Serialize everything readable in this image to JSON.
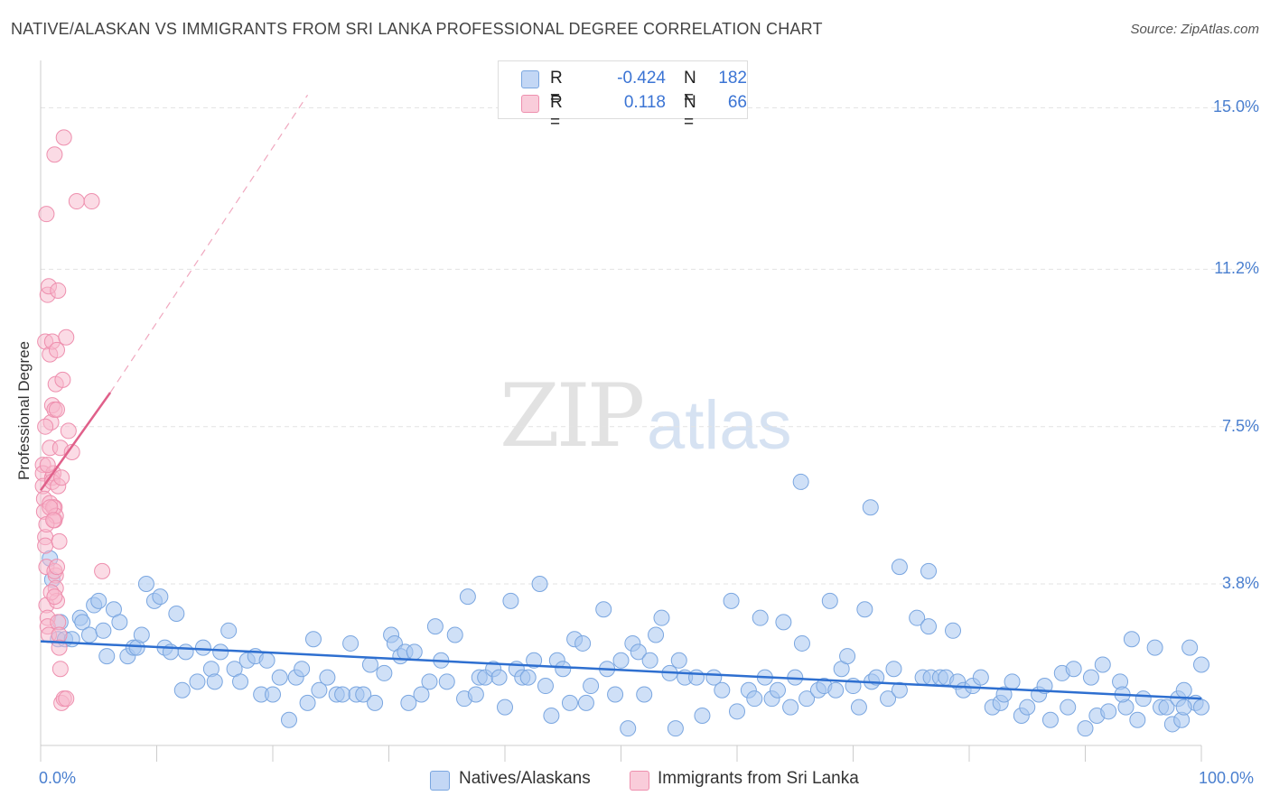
{
  "title": "NATIVE/ALASKAN VS IMMIGRANTS FROM SRI LANKA PROFESSIONAL DEGREE CORRELATION CHART",
  "source": "Source: ZipAtlas.com",
  "watermark": {
    "zip": "ZIP",
    "atlas": "atlas"
  },
  "legend": {
    "r_label": "R =",
    "n_label": "N =",
    "series1": {
      "r": "-0.424",
      "n": "182"
    },
    "series2": {
      "r": "0.118",
      "n": "66"
    }
  },
  "colors": {
    "blue_fill": "#a8c6f0",
    "blue_stroke": "#7aa6e0",
    "blue_line": "#2e6fd0",
    "pink_fill": "#f7b8cc",
    "pink_stroke": "#ee8fae",
    "pink_line": "#e0608a",
    "tick_text": "#4a7fcf"
  },
  "chart_data": {
    "type": "scatter",
    "title": "NATIVE/ALASKAN VS IMMIGRANTS FROM SRI LANKA PROFESSIONAL DEGREE CORRELATION CHART",
    "xlabel": "",
    "ylabel": "Professional Degree",
    "xlim": [
      0,
      100
    ],
    "ylim": [
      0,
      15.9
    ],
    "x_tick_labels": [
      "0.0%",
      "100.0%"
    ],
    "y_ticks": [
      {
        "value": 3.8,
        "label": "3.8%"
      },
      {
        "value": 7.5,
        "label": "7.5%"
      },
      {
        "value": 11.2,
        "label": "11.2%"
      },
      {
        "value": 15.0,
        "label": "15.0%"
      }
    ],
    "series": [
      {
        "name": "Natives/Alaskans",
        "R": -0.424,
        "N": 182,
        "trend": {
          "x": [
            0,
            100
          ],
          "y": [
            2.45,
            1.1
          ]
        },
        "points": [
          [
            0.8,
            4.4
          ],
          [
            1.0,
            3.9
          ],
          [
            1.5,
            2.5
          ],
          [
            1.7,
            2.9
          ],
          [
            2.1,
            2.5
          ],
          [
            2.7,
            2.5
          ],
          [
            3.4,
            3.0
          ],
          [
            3.6,
            2.9
          ],
          [
            4.2,
            2.6
          ],
          [
            4.6,
            3.3
          ],
          [
            5.0,
            3.4
          ],
          [
            5.4,
            2.7
          ],
          [
            5.7,
            2.1
          ],
          [
            6.3,
            3.2
          ],
          [
            6.8,
            2.9
          ],
          [
            7.5,
            2.1
          ],
          [
            8.0,
            2.3
          ],
          [
            8.3,
            2.3
          ],
          [
            8.7,
            2.6
          ],
          [
            9.1,
            3.8
          ],
          [
            9.8,
            3.4
          ],
          [
            10.3,
            3.5
          ],
          [
            10.7,
            2.3
          ],
          [
            11.2,
            2.2
          ],
          [
            11.7,
            3.1
          ],
          [
            12.2,
            1.3
          ],
          [
            12.5,
            2.2
          ],
          [
            13.5,
            1.5
          ],
          [
            14.0,
            2.3
          ],
          [
            14.7,
            1.8
          ],
          [
            15.0,
            1.5
          ],
          [
            15.5,
            2.2
          ],
          [
            16.2,
            2.7
          ],
          [
            16.7,
            1.8
          ],
          [
            17.2,
            1.5
          ],
          [
            17.8,
            2.0
          ],
          [
            18.5,
            2.1
          ],
          [
            19.0,
            1.2
          ],
          [
            19.5,
            2.0
          ],
          [
            20.0,
            1.2
          ],
          [
            20.6,
            1.6
          ],
          [
            21.4,
            0.6
          ],
          [
            22.0,
            1.6
          ],
          [
            22.5,
            1.8
          ],
          [
            23.0,
            1.0
          ],
          [
            23.5,
            2.5
          ],
          [
            24.0,
            1.3
          ],
          [
            24.7,
            1.6
          ],
          [
            25.5,
            1.2
          ],
          [
            26.0,
            1.2
          ],
          [
            26.7,
            2.4
          ],
          [
            27.2,
            1.2
          ],
          [
            27.8,
            1.2
          ],
          [
            28.4,
            1.9
          ],
          [
            28.8,
            1.0
          ],
          [
            29.6,
            1.7
          ],
          [
            30.2,
            2.6
          ],
          [
            30.5,
            2.4
          ],
          [
            31.0,
            2.1
          ],
          [
            31.4,
            2.2
          ],
          [
            31.7,
            1.0
          ],
          [
            32.2,
            2.2
          ],
          [
            32.8,
            1.2
          ],
          [
            33.5,
            1.5
          ],
          [
            34.0,
            2.8
          ],
          [
            34.5,
            2.0
          ],
          [
            35.0,
            1.5
          ],
          [
            35.7,
            2.6
          ],
          [
            36.5,
            1.1
          ],
          [
            36.8,
            3.5
          ],
          [
            37.5,
            1.2
          ],
          [
            37.8,
            1.6
          ],
          [
            38.3,
            1.6
          ],
          [
            39.0,
            1.8
          ],
          [
            39.5,
            1.6
          ],
          [
            40.0,
            0.9
          ],
          [
            40.5,
            3.4
          ],
          [
            41.0,
            1.8
          ],
          [
            41.5,
            1.6
          ],
          [
            42.0,
            1.6
          ],
          [
            42.5,
            2.0
          ],
          [
            43.0,
            3.8
          ],
          [
            43.5,
            1.4
          ],
          [
            44.0,
            0.7
          ],
          [
            44.5,
            2.0
          ],
          [
            45.0,
            1.8
          ],
          [
            45.6,
            1.0
          ],
          [
            46.0,
            2.5
          ],
          [
            46.7,
            2.4
          ],
          [
            47.0,
            1.0
          ],
          [
            47.4,
            1.4
          ],
          [
            48.5,
            3.2
          ],
          [
            48.8,
            1.8
          ],
          [
            49.5,
            1.2
          ],
          [
            50.0,
            2.0
          ],
          [
            50.6,
            0.4
          ],
          [
            51.0,
            2.4
          ],
          [
            51.5,
            2.2
          ],
          [
            52.0,
            1.2
          ],
          [
            52.5,
            2.0
          ],
          [
            53.0,
            2.6
          ],
          [
            53.5,
            3.0
          ],
          [
            54.2,
            1.7
          ],
          [
            54.7,
            0.4
          ],
          [
            55.0,
            2.0
          ],
          [
            55.5,
            1.6
          ],
          [
            56.5,
            1.6
          ],
          [
            57.0,
            0.7
          ],
          [
            58.0,
            1.6
          ],
          [
            58.7,
            1.3
          ],
          [
            59.5,
            3.4
          ],
          [
            60.0,
            0.8
          ],
          [
            61.0,
            1.3
          ],
          [
            61.5,
            1.1
          ],
          [
            62.0,
            3.0
          ],
          [
            62.4,
            1.6
          ],
          [
            63.0,
            1.1
          ],
          [
            63.5,
            1.3
          ],
          [
            64.0,
            2.9
          ],
          [
            64.6,
            0.9
          ],
          [
            65.0,
            1.6
          ],
          [
            65.6,
            2.4
          ],
          [
            66.0,
            1.1
          ],
          [
            67.0,
            1.3
          ],
          [
            67.5,
            1.4
          ],
          [
            68.0,
            3.4
          ],
          [
            68.5,
            1.3
          ],
          [
            69.0,
            1.8
          ],
          [
            69.5,
            2.1
          ],
          [
            70.0,
            1.4
          ],
          [
            70.5,
            0.9
          ],
          [
            71.0,
            3.2
          ],
          [
            71.6,
            1.5
          ],
          [
            72.0,
            1.6
          ],
          [
            73.0,
            1.1
          ],
          [
            73.5,
            1.8
          ],
          [
            74.0,
            1.3
          ],
          [
            75.5,
            3.0
          ],
          [
            76.0,
            1.6
          ],
          [
            76.5,
            2.8
          ],
          [
            76.7,
            1.6
          ],
          [
            77.5,
            1.6
          ],
          [
            78.0,
            1.6
          ],
          [
            78.6,
            2.7
          ],
          [
            79.0,
            1.5
          ],
          [
            79.5,
            1.3
          ],
          [
            80.3,
            1.4
          ],
          [
            81.0,
            1.6
          ],
          [
            82.0,
            0.9
          ],
          [
            82.7,
            1.0
          ],
          [
            83.0,
            1.2
          ],
          [
            83.7,
            1.5
          ],
          [
            84.5,
            0.7
          ],
          [
            85.0,
            0.9
          ],
          [
            86.0,
            1.2
          ],
          [
            86.5,
            1.4
          ],
          [
            87.0,
            0.6
          ],
          [
            88.0,
            1.7
          ],
          [
            88.5,
            0.9
          ],
          [
            89.0,
            1.8
          ],
          [
            90.0,
            0.4
          ],
          [
            90.5,
            1.6
          ],
          [
            91.0,
            0.7
          ],
          [
            91.5,
            1.9
          ],
          [
            92.0,
            0.8
          ],
          [
            93.0,
            1.5
          ],
          [
            93.5,
            0.9
          ],
          [
            94.0,
            2.5
          ],
          [
            94.5,
            0.6
          ],
          [
            95.0,
            1.1
          ],
          [
            96.0,
            2.3
          ],
          [
            96.5,
            0.9
          ],
          [
            97.0,
            0.9
          ],
          [
            97.5,
            0.5
          ],
          [
            98.0,
            1.1
          ],
          [
            98.5,
            1.3
          ],
          [
            99.0,
            2.3
          ],
          [
            99.5,
            1.0
          ],
          [
            100.0,
            0.9
          ],
          [
            65.5,
            6.2
          ],
          [
            71.5,
            5.6
          ],
          [
            74.0,
            4.2
          ],
          [
            76.5,
            4.1
          ],
          [
            100.0,
            1.9
          ],
          [
            93.2,
            1.2
          ],
          [
            98.3,
            0.6
          ],
          [
            98.5,
            0.9
          ]
        ]
      },
      {
        "name": "Immigrants from Sri Lanka",
        "R": 0.118,
        "N": 66,
        "trend": {
          "x": [
            0.0,
            6.0
          ],
          "y": [
            6.0,
            8.3
          ]
        },
        "trend_extended": {
          "x": [
            6.0,
            23.0
          ],
          "y": [
            8.3,
            15.3
          ]
        },
        "points": [
          [
            0.2,
            6.6
          ],
          [
            0.2,
            6.4
          ],
          [
            0.2,
            6.1
          ],
          [
            0.3,
            5.8
          ],
          [
            0.3,
            5.5
          ],
          [
            0.4,
            4.9
          ],
          [
            0.4,
            4.7
          ],
          [
            0.5,
            4.2
          ],
          [
            0.5,
            3.3
          ],
          [
            0.6,
            3.0
          ],
          [
            0.6,
            2.8
          ],
          [
            0.7,
            2.6
          ],
          [
            0.8,
            7.0
          ],
          [
            0.9,
            7.6
          ],
          [
            1.0,
            8.0
          ],
          [
            1.0,
            6.3
          ],
          [
            1.1,
            6.4
          ],
          [
            1.2,
            5.6
          ],
          [
            1.2,
            5.3
          ],
          [
            1.3,
            4.0
          ],
          [
            1.3,
            3.7
          ],
          [
            1.4,
            3.4
          ],
          [
            1.5,
            2.9
          ],
          [
            1.6,
            2.6
          ],
          [
            1.6,
            2.3
          ],
          [
            1.7,
            1.8
          ],
          [
            1.8,
            1.0
          ],
          [
            2.0,
            1.1
          ],
          [
            2.2,
            1.1
          ],
          [
            0.5,
            12.5
          ],
          [
            1.2,
            13.9
          ],
          [
            2.0,
            14.3
          ],
          [
            3.1,
            12.8
          ],
          [
            4.4,
            12.8
          ],
          [
            0.6,
            10.6
          ],
          [
            0.7,
            10.8
          ],
          [
            1.5,
            10.7
          ],
          [
            0.4,
            9.5
          ],
          [
            0.8,
            9.2
          ],
          [
            1.0,
            9.5
          ],
          [
            1.4,
            9.3
          ],
          [
            2.2,
            9.6
          ],
          [
            1.3,
            8.5
          ],
          [
            1.9,
            8.6
          ],
          [
            1.2,
            7.9
          ],
          [
            1.4,
            7.9
          ],
          [
            0.4,
            7.5
          ],
          [
            1.7,
            7.0
          ],
          [
            2.4,
            7.4
          ],
          [
            2.7,
            6.9
          ],
          [
            0.6,
            6.6
          ],
          [
            1.0,
            6.2
          ],
          [
            1.5,
            6.1
          ],
          [
            1.8,
            6.3
          ],
          [
            0.8,
            5.7
          ],
          [
            1.1,
            5.6
          ],
          [
            1.3,
            5.4
          ],
          [
            0.5,
            5.2
          ],
          [
            0.8,
            5.6
          ],
          [
            1.6,
            4.8
          ],
          [
            1.2,
            4.1
          ],
          [
            1.4,
            4.2
          ],
          [
            0.9,
            3.6
          ],
          [
            1.2,
            3.5
          ],
          [
            5.3,
            4.1
          ],
          [
            1.1,
            5.3
          ]
        ]
      }
    ]
  },
  "bottom_legend": {
    "series1": "Natives/Alaskans",
    "series2": "Immigrants from Sri Lanka"
  }
}
